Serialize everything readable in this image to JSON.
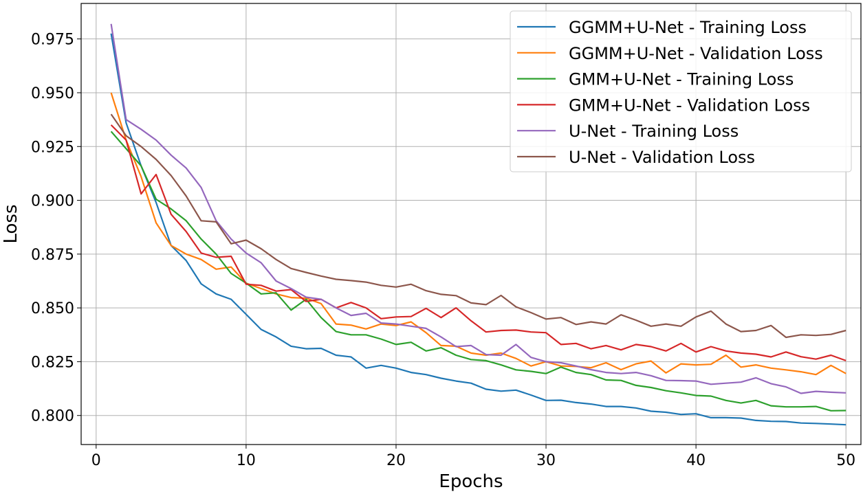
{
  "chart_data": {
    "type": "line",
    "title": "",
    "xlabel": "Epochs",
    "ylabel": "Loss",
    "xlim": [
      -1,
      51
    ],
    "ylim": [
      0.7865,
      0.9915
    ],
    "xticks": [
      0,
      10,
      20,
      30,
      40,
      50
    ],
    "yticks": [
      0.8,
      0.825,
      0.85,
      0.875,
      0.9,
      0.925,
      0.95,
      0.975
    ],
    "ytick_labels": [
      "0.800",
      "0.825",
      "0.850",
      "0.875",
      "0.900",
      "0.925",
      "0.950",
      "0.975"
    ],
    "grid": true,
    "legend_position": "top-right",
    "x": [
      1,
      2,
      3,
      4,
      5,
      6,
      7,
      8,
      9,
      10,
      11,
      12,
      13,
      14,
      15,
      16,
      17,
      18,
      19,
      20,
      21,
      22,
      23,
      24,
      25,
      26,
      27,
      28,
      29,
      30,
      31,
      32,
      33,
      34,
      35,
      36,
      37,
      38,
      39,
      40,
      41,
      42,
      43,
      44,
      45,
      46,
      47,
      48,
      49,
      50
    ],
    "series": [
      {
        "name": "GGMM+U-Net - Training Loss",
        "color": "#1f77b4",
        "values": [
          0.9775,
          0.936,
          0.916,
          0.899,
          0.879,
          0.872,
          0.8612,
          0.8565,
          0.854,
          0.847,
          0.84,
          0.8365,
          0.8322,
          0.831,
          0.8312,
          0.828,
          0.8272,
          0.822,
          0.8233,
          0.822,
          0.82,
          0.819,
          0.8173,
          0.816,
          0.815,
          0.8122,
          0.8113,
          0.8118,
          0.8095,
          0.807,
          0.8071,
          0.806,
          0.8053,
          0.8042,
          0.8042,
          0.8035,
          0.802,
          0.8015,
          0.8005,
          0.8008,
          0.799,
          0.799,
          0.7988,
          0.7977,
          0.7973,
          0.7972,
          0.7965,
          0.7963,
          0.796,
          0.7957
        ]
      },
      {
        "name": "GGMM+U-Net - Validation Loss",
        "color": "#ff7f0e",
        "values": [
          0.95,
          0.928,
          0.911,
          0.8895,
          0.879,
          0.875,
          0.8725,
          0.868,
          0.869,
          0.8615,
          0.859,
          0.8565,
          0.8548,
          0.8545,
          0.852,
          0.8425,
          0.842,
          0.8402,
          0.8425,
          0.8418,
          0.8435,
          0.8385,
          0.8325,
          0.8322,
          0.829,
          0.828,
          0.829,
          0.8265,
          0.823,
          0.825,
          0.823,
          0.8228,
          0.8222,
          0.8245,
          0.8213,
          0.824,
          0.8253,
          0.8198,
          0.824,
          0.8235,
          0.8238,
          0.828,
          0.8225,
          0.8235,
          0.822,
          0.8212,
          0.8203,
          0.819,
          0.8233,
          0.8195
        ]
      },
      {
        "name": "GMM+U-Net - Training Loss",
        "color": "#2ca02c",
        "values": [
          0.932,
          0.924,
          0.916,
          0.9005,
          0.896,
          0.8905,
          0.882,
          0.875,
          0.866,
          0.8615,
          0.8565,
          0.857,
          0.849,
          0.854,
          0.8455,
          0.839,
          0.8375,
          0.8375,
          0.8355,
          0.833,
          0.834,
          0.83,
          0.8315,
          0.828,
          0.826,
          0.8255,
          0.8235,
          0.8212,
          0.8205,
          0.8195,
          0.8225,
          0.82,
          0.819,
          0.8165,
          0.8163,
          0.814,
          0.813,
          0.8115,
          0.8105,
          0.8093,
          0.809,
          0.807,
          0.8058,
          0.807,
          0.8045,
          0.804,
          0.804,
          0.8042,
          0.8022,
          0.8023
        ]
      },
      {
        "name": "GMM+U-Net - Validation Loss",
        "color": "#d62728",
        "values": [
          0.935,
          0.928,
          0.903,
          0.912,
          0.8935,
          0.8855,
          0.8755,
          0.8735,
          0.874,
          0.861,
          0.8605,
          0.8578,
          0.8585,
          0.853,
          0.854,
          0.85,
          0.8525,
          0.85,
          0.845,
          0.8458,
          0.846,
          0.8498,
          0.8455,
          0.85,
          0.844,
          0.8388,
          0.8395,
          0.8397,
          0.8388,
          0.8385,
          0.833,
          0.8335,
          0.831,
          0.8325,
          0.8305,
          0.833,
          0.832,
          0.83,
          0.8335,
          0.8295,
          0.832,
          0.83,
          0.829,
          0.8285,
          0.8272,
          0.8295,
          0.8273,
          0.8262,
          0.828,
          0.8255
        ]
      },
      {
        "name": "U-Net - Training Loss",
        "color": "#9467bd",
        "values": [
          0.982,
          0.9375,
          0.933,
          0.928,
          0.921,
          0.915,
          0.906,
          0.8905,
          0.882,
          0.8755,
          0.871,
          0.8625,
          0.859,
          0.855,
          0.854,
          0.85,
          0.8465,
          0.8475,
          0.843,
          0.8425,
          0.8415,
          0.8405,
          0.8365,
          0.832,
          0.8325,
          0.8283,
          0.828,
          0.833,
          0.827,
          0.825,
          0.8245,
          0.823,
          0.8213,
          0.82,
          0.8195,
          0.82,
          0.8185,
          0.8163,
          0.8162,
          0.816,
          0.8145,
          0.815,
          0.8155,
          0.8175,
          0.8148,
          0.8133,
          0.8103,
          0.8112,
          0.8108,
          0.8105
        ]
      },
      {
        "name": "U-Net - Validation Loss",
        "color": "#8c564b",
        "values": [
          0.94,
          0.93,
          0.925,
          0.919,
          0.9115,
          0.902,
          0.8905,
          0.89,
          0.8798,
          0.8815,
          0.8775,
          0.8725,
          0.8683,
          0.8665,
          0.8648,
          0.8633,
          0.8627,
          0.862,
          0.8605,
          0.8597,
          0.861,
          0.858,
          0.8563,
          0.8557,
          0.8523,
          0.8515,
          0.8558,
          0.8505,
          0.8478,
          0.8448,
          0.8455,
          0.8423,
          0.8435,
          0.8425,
          0.8468,
          0.8443,
          0.8415,
          0.8425,
          0.8415,
          0.8458,
          0.8485,
          0.8425,
          0.839,
          0.8395,
          0.8418,
          0.8363,
          0.8375,
          0.8372,
          0.8377,
          0.8395
        ]
      }
    ]
  }
}
